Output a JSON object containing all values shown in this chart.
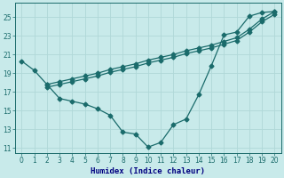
{
  "xlabel": "Humidex (Indice chaleur)",
  "bg_color": "#c8eaea",
  "line_color": "#1a6b6b",
  "grid_color": "#b0d8d8",
  "xlim": [
    -0.5,
    20.5
  ],
  "ylim": [
    10.5,
    26.5
  ],
  "xticks": [
    0,
    1,
    2,
    3,
    4,
    5,
    6,
    7,
    8,
    9,
    10,
    11,
    12,
    13,
    14,
    15,
    16,
    17,
    18,
    19,
    20
  ],
  "yticks": [
    11,
    13,
    15,
    17,
    19,
    21,
    23,
    25
  ],
  "line1_x": [
    0,
    1,
    2,
    3,
    4,
    5,
    6,
    7,
    8,
    9,
    10,
    11,
    12,
    13,
    14,
    15,
    16,
    17,
    18,
    19,
    20
  ],
  "line1_y": [
    20.3,
    19.3,
    17.8,
    16.3,
    16.0,
    15.7,
    15.2,
    14.5,
    12.7,
    12.5,
    11.1,
    11.6,
    13.5,
    14.1,
    16.7,
    19.8,
    23.1,
    23.4,
    25.1,
    25.5,
    25.6
  ],
  "line2_x": [
    2,
    3,
    4,
    5,
    6,
    7,
    8,
    9,
    10,
    11,
    12,
    13,
    14,
    15,
    16,
    17,
    18,
    19,
    20
  ],
  "line2_y": [
    17.8,
    18.1,
    18.4,
    18.7,
    19.0,
    19.4,
    19.7,
    20.0,
    20.4,
    20.7,
    21.0,
    21.4,
    21.7,
    22.0,
    22.4,
    22.8,
    23.7,
    24.8,
    25.6
  ],
  "line3_x": [
    2,
    3,
    4,
    5,
    6,
    7,
    8,
    9,
    10,
    11,
    12,
    13,
    14,
    15,
    16,
    17,
    18,
    19,
    20
  ],
  "line3_y": [
    17.5,
    17.8,
    18.1,
    18.4,
    18.7,
    19.1,
    19.4,
    19.7,
    20.1,
    20.4,
    20.7,
    21.1,
    21.4,
    21.7,
    22.1,
    22.5,
    23.4,
    24.5,
    25.3
  ]
}
